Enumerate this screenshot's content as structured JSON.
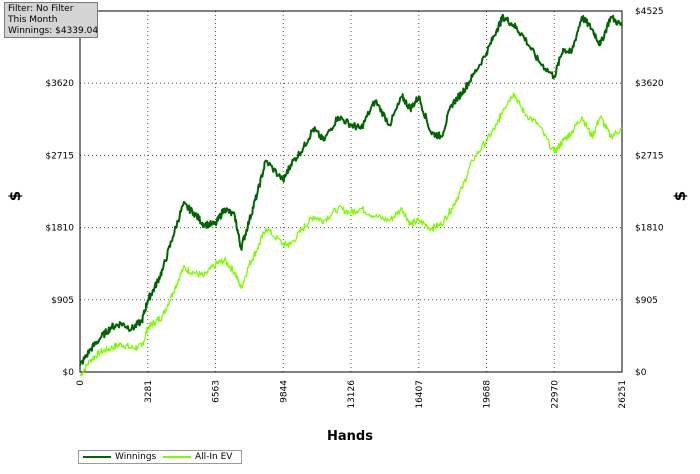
{
  "info": {
    "filter": "Filter: No Filter",
    "period": "This Month",
    "winnings": "Winnings: $4339.04"
  },
  "chart_data": {
    "type": "line",
    "title": "",
    "xlabel": "Hands",
    "ylabel": "$",
    "xlim": [
      0,
      26251
    ],
    "ylim": [
      0,
      4525
    ],
    "x_ticks": [
      "0",
      "3281",
      "6563",
      "9844",
      "13126",
      "16407",
      "19688",
      "22970",
      "26251"
    ],
    "y_ticks": [
      "$0",
      "$905",
      "$1810",
      "$2715",
      "$3620",
      "$4525"
    ],
    "grid": true,
    "legend_position": "bottom-left",
    "series": [
      {
        "name": "Winnings",
        "color": "#006400",
        "x": [
          0,
          500,
          1000,
          1500,
          2000,
          2500,
          3000,
          3281,
          3600,
          4000,
          4500,
          5000,
          5500,
          6000,
          6563,
          7000,
          7500,
          7800,
          8200,
          8600,
          9000,
          9844,
          10200,
          10800,
          11300,
          11800,
          12500,
          13126,
          13600,
          14300,
          15000,
          15600,
          16000,
          16407,
          17000,
          17500,
          18000,
          18500,
          19000,
          19688,
          20200,
          20500,
          21000,
          21500,
          22200,
          22970,
          23400,
          23800,
          24300,
          24800,
          25200,
          25700,
          26251
        ],
        "y": [
          80,
          280,
          430,
          560,
          610,
          540,
          640,
          900,
          1050,
          1280,
          1700,
          2100,
          2000,
          1850,
          1850,
          2050,
          1950,
          1550,
          1900,
          2250,
          2650,
          2400,
          2600,
          2800,
          3050,
          2900,
          3200,
          3100,
          3050,
          3400,
          3100,
          3450,
          3300,
          3450,
          3000,
          2950,
          3350,
          3500,
          3700,
          4000,
          4300,
          4450,
          4350,
          4200,
          3900,
          3700,
          4050,
          4000,
          4450,
          4300,
          4100,
          4450,
          4339
        ]
      },
      {
        "name": "All-In EV",
        "color": "#7cfc00",
        "x": [
          0,
          500,
          1000,
          1500,
          2000,
          2500,
          3000,
          3281,
          3600,
          4000,
          4500,
          5000,
          5500,
          6000,
          6563,
          7000,
          7500,
          7800,
          8200,
          8600,
          9000,
          9844,
          10200,
          10800,
          11300,
          11800,
          12500,
          13126,
          13600,
          14300,
          15000,
          15600,
          16000,
          16407,
          17000,
          17500,
          18000,
          18500,
          19000,
          19688,
          20200,
          20500,
          21000,
          21500,
          22200,
          22970,
          23400,
          23800,
          24300,
          24800,
          25200,
          25700,
          26251
        ],
        "y": [
          -50,
          150,
          250,
          300,
          350,
          300,
          320,
          550,
          620,
          700,
          1000,
          1300,
          1250,
          1200,
          1350,
          1400,
          1250,
          1050,
          1350,
          1550,
          1800,
          1600,
          1600,
          1800,
          1950,
          1900,
          2050,
          2000,
          2050,
          1950,
          1900,
          2050,
          1850,
          1900,
          1800,
          1850,
          2050,
          2300,
          2650,
          2900,
          3100,
          3300,
          3500,
          3250,
          3100,
          2750,
          2900,
          3000,
          3200,
          2950,
          3200,
          2950,
          3050
        ]
      }
    ]
  }
}
